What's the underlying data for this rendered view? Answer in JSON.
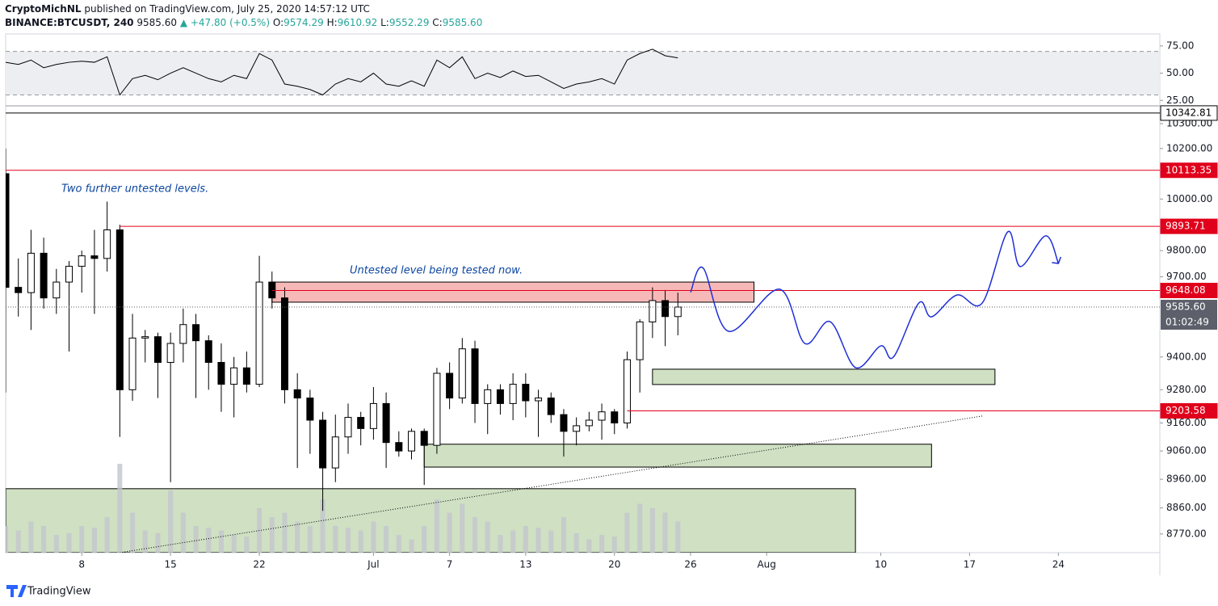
{
  "header": {
    "author": "CryptoMichNL",
    "published": "published on TradingView.com, July 25, 2020 14:57:12 UTC",
    "symbol": "BINANCE:BTCUSDT, 240",
    "last": "9585.60",
    "change": "▲ +47.80 (+0.5%)",
    "o_label": "O:",
    "o": "9574.29",
    "h_label": "H:",
    "h": "9610.92",
    "l_label": "L:",
    "l": "9552.29",
    "c_label": "C:",
    "c": "9585.60"
  },
  "footer": {
    "brand": "TradingView"
  },
  "chart_data": [
    {
      "type": "line",
      "color": "#000000",
      "x": [
        "Jun 2",
        "Jun 3",
        "Jun 4",
        "Jun 5",
        "Jun 6",
        "Jun 7",
        "Jun 8",
        "Jun 9",
        "Jun 10",
        "Jun 11",
        "Jun 12",
        "Jun 13",
        "Jun 14",
        "Jun 15",
        "Jun 16",
        "Jun 17",
        "Jun 18",
        "Jun 19",
        "Jun 20",
        "Jun 21",
        "Jun 22",
        "Jun 23",
        "Jun 24",
        "Jun 25",
        "Jun 26",
        "Jun 27",
        "Jun 28",
        "Jun 29",
        "Jun 30",
        "Jul 1",
        "Jul 2",
        "Jul 3",
        "Jul 4",
        "Jul 5",
        "Jul 6",
        "Jul 7",
        "Jul 8",
        "Jul 9",
        "Jul 10",
        "Jul 11",
        "Jul 12",
        "Jul 13",
        "Jul 14",
        "Jul 15",
        "Jul 16",
        "Jul 17",
        "Jul 18",
        "Jul 19",
        "Jul 20",
        "Jul 21",
        "Jul 22",
        "Jul 23",
        "Jul 24",
        "Jul 25"
      ],
      "values": [
        60,
        58,
        62,
        55,
        58,
        60,
        61,
        60,
        65,
        30,
        45,
        48,
        44,
        50,
        55,
        50,
        45,
        42,
        48,
        45,
        68,
        62,
        40,
        38,
        35,
        30,
        40,
        45,
        42,
        50,
        40,
        38,
        43,
        38,
        62,
        55,
        65,
        45,
        50,
        46,
        52,
        47,
        48,
        42,
        36,
        40,
        42,
        45,
        40,
        62,
        68,
        72,
        66,
        64
      ],
      "xlim": [
        "Jun 2",
        "Sep 1"
      ],
      "ylim": [
        20,
        86
      ],
      "yticks": [
        {
          "value": 25,
          "label": "25.00"
        },
        {
          "value": 50,
          "label": "50.00"
        },
        {
          "value": 75,
          "label": "75.00"
        }
      ],
      "band": [
        30,
        70
      ],
      "band_color": "#eceef1"
    },
    {
      "type": "candlestick",
      "log_scale": true,
      "up_color": "#ffffff",
      "down_color": "#000000",
      "x": [
        "Jun 2",
        "Jun 3",
        "Jun 4",
        "Jun 5",
        "Jun 6",
        "Jun 7",
        "Jun 8",
        "Jun 9",
        "Jun 10",
        "Jun 11",
        "Jun 12",
        "Jun 13",
        "Jun 14",
        "Jun 15",
        "Jun 16",
        "Jun 17",
        "Jun 18",
        "Jun 19",
        "Jun 20",
        "Jun 21",
        "Jun 22",
        "Jun 23",
        "Jun 24",
        "Jun 25",
        "Jun 26",
        "Jun 27",
        "Jun 28",
        "Jun 29",
        "Jun 30",
        "Jul 1",
        "Jul 2",
        "Jul 3",
        "Jul 4",
        "Jul 5",
        "Jul 6",
        "Jul 7",
        "Jul 8",
        "Jul 9",
        "Jul 10",
        "Jul 11",
        "Jul 12",
        "Jul 13",
        "Jul 14",
        "Jul 15",
        "Jul 16",
        "Jul 17",
        "Jul 18",
        "Jul 19",
        "Jul 20",
        "Jul 21",
        "Jul 22",
        "Jul 23",
        "Jul 24",
        "Jul 25"
      ],
      "open": [
        10100,
        9660,
        9640,
        9790,
        9620,
        9680,
        9740,
        9780,
        9770,
        9880,
        9280,
        9470,
        9475,
        9380,
        9450,
        9520,
        9460,
        9380,
        9300,
        9360,
        9300,
        9680,
        9620,
        9280,
        9250,
        9170,
        9000,
        9110,
        9180,
        9140,
        9230,
        9090,
        9060,
        9130,
        9080,
        9340,
        9250,
        9430,
        9230,
        9280,
        9230,
        9300,
        9240,
        9250,
        9190,
        9130,
        9150,
        9170,
        9200,
        9160,
        9390,
        9530,
        9610,
        9550
      ],
      "high": [
        10200,
        9770,
        9880,
        9850,
        9730,
        9760,
        9800,
        9880,
        9990,
        9900,
        9560,
        9500,
        9490,
        9490,
        9580,
        9560,
        9480,
        9450,
        9400,
        9420,
        9780,
        9720,
        9660,
        9340,
        9280,
        9200,
        9190,
        9230,
        9200,
        9290,
        9270,
        9130,
        9140,
        9140,
        9360,
        9380,
        9470,
        9460,
        9300,
        9300,
        9340,
        9340,
        9280,
        9270,
        9210,
        9180,
        9200,
        9230,
        9210,
        9420,
        9540,
        9660,
        9650,
        9640
      ],
      "low": [
        9270,
        9550,
        9500,
        9580,
        9560,
        9420,
        9640,
        9560,
        9720,
        9110,
        9240,
        9380,
        9250,
        8950,
        9380,
        9250,
        9280,
        9200,
        9180,
        9270,
        9290,
        9580,
        9230,
        9000,
        9050,
        8850,
        8950,
        9050,
        9080,
        9100,
        9000,
        9040,
        9030,
        8940,
        9050,
        9210,
        9230,
        9160,
        9120,
        9190,
        9170,
        9180,
        9110,
        9160,
        9040,
        9080,
        9130,
        9100,
        9120,
        9140,
        9270,
        9470,
        9440,
        9480
      ],
      "close": [
        9660,
        9640,
        9790,
        9620,
        9680,
        9740,
        9780,
        9770,
        9880,
        9280,
        9470,
        9475,
        9380,
        9450,
        9520,
        9460,
        9380,
        9300,
        9360,
        9300,
        9680,
        9620,
        9280,
        9250,
        9170,
        9000,
        9110,
        9180,
        9140,
        9230,
        9090,
        9060,
        9130,
        9080,
        9340,
        9250,
        9430,
        9230,
        9280,
        9230,
        9300,
        9240,
        9250,
        9190,
        9130,
        9150,
        9170,
        9200,
        9160,
        9390,
        9530,
        9610,
        9550,
        9585.6
      ],
      "volume": {
        "values": [
          30,
          25,
          35,
          30,
          20,
          22,
          30,
          28,
          40,
          100,
          45,
          25,
          22,
          70,
          45,
          30,
          28,
          25,
          20,
          18,
          50,
          40,
          45,
          35,
          30,
          60,
          30,
          28,
          25,
          35,
          30,
          20,
          15,
          30,
          60,
          45,
          55,
          40,
          35,
          20,
          25,
          30,
          28,
          25,
          40,
          22,
          15,
          20,
          18,
          45,
          55,
          50,
          45,
          35
        ],
        "ylim": [
          0,
          100
        ],
        "color": "#c3c6cd"
      },
      "xlim": [
        "Jun 2",
        "Sep 1"
      ],
      "ylim": [
        8706,
        10336
      ],
      "xticks": [
        {
          "value": "Jun 8",
          "label": "8"
        },
        {
          "value": "Jun 15",
          "label": "15"
        },
        {
          "value": "Jun 22",
          "label": "22"
        },
        {
          "value": "Jul 1",
          "label": "Jul"
        },
        {
          "value": "Jul 7",
          "label": "7"
        },
        {
          "value": "Jul 13",
          "label": "13"
        },
        {
          "value": "Jul 20",
          "label": "20"
        },
        {
          "value": "Jul 26",
          "label": "26"
        },
        {
          "value": "Aug 1",
          "label": "Aug"
        },
        {
          "value": "Aug 10",
          "label": "10"
        },
        {
          "value": "Aug 17",
          "label": "17"
        },
        {
          "value": "Aug 24",
          "label": "24"
        }
      ],
      "yticks": [
        {
          "value": 8770,
          "label": "8770.00"
        },
        {
          "value": 8860,
          "label": "8860.00"
        },
        {
          "value": 8960,
          "label": "8960.00"
        },
        {
          "value": 9060,
          "label": "9060.00"
        },
        {
          "value": 9160,
          "label": "9160.00"
        },
        {
          "value": 9280,
          "label": "9280.00"
        },
        {
          "value": 9400,
          "label": "9400.00"
        },
        {
          "value": 9700,
          "label": "9700.00"
        },
        {
          "value": 9800,
          "label": "9800.00"
        },
        {
          "value": 10000,
          "label": "10000.00"
        },
        {
          "value": 10200,
          "label": "10200.00"
        },
        {
          "value": 10300,
          "label": "10300.00"
        }
      ],
      "levels": [
        {
          "value": 10342.81,
          "from": "Jun 2",
          "color": "#000000"
        },
        {
          "value": 10113.35,
          "from": "Jun 2",
          "color": "#e0001b"
        },
        {
          "value": 9893.71,
          "from": "Jun 11",
          "color": "#e0001b"
        },
        {
          "value": 9648.08,
          "from": "Jun 23",
          "color": "#e0001b"
        },
        {
          "value": 9203.58,
          "from": "Jul 21",
          "color": "#e0001b"
        }
      ],
      "last_price": {
        "value": 9585.6,
        "label": "9585.60",
        "color": "#5d606b"
      },
      "countdown": "01:02:49",
      "zones": [
        {
          "from": "Jun 23",
          "to": "Jul 31",
          "low": 9604,
          "high": 9680,
          "color": "#f7b8b8"
        },
        {
          "from": "Jul 23",
          "to": "Aug 19",
          "low": 9299,
          "high": 9355,
          "color": "#cfe0c3"
        },
        {
          "from": "Jul 5",
          "to": "Aug 14",
          "low": 9003,
          "high": 9084,
          "color": "#cfe0c3"
        },
        {
          "from": "Jun 2",
          "to": "Aug 8",
          "low": 8706,
          "high": 8927,
          "color": "#cfe0c3"
        }
      ],
      "projection": {
        "color": "#1f2fd6",
        "x": [
          "Jul 26",
          "Jul 27",
          "Jul 29",
          "Aug 2",
          "Aug 4",
          "Aug 6",
          "Aug 8",
          "Aug 10",
          "Aug 11",
          "Aug 13",
          "Aug 14",
          "Aug 16",
          "Aug 18",
          "Aug 20",
          "Aug 21",
          "Aug 23",
          "Aug 24"
        ],
        "values": [
          9641,
          9733,
          9495,
          9653,
          9450,
          9531,
          9361,
          9441,
          9400,
          9601,
          9549,
          9631,
          9601,
          9872,
          9739,
          9857,
          9751
        ]
      },
      "trendline": {
        "x": [
          "Jun 11",
          "Aug 18"
        ],
        "values": [
          8706,
          9185
        ]
      },
      "annotations": [
        "Two further untested levels.",
        "Untested level being tested now."
      ]
    }
  ]
}
